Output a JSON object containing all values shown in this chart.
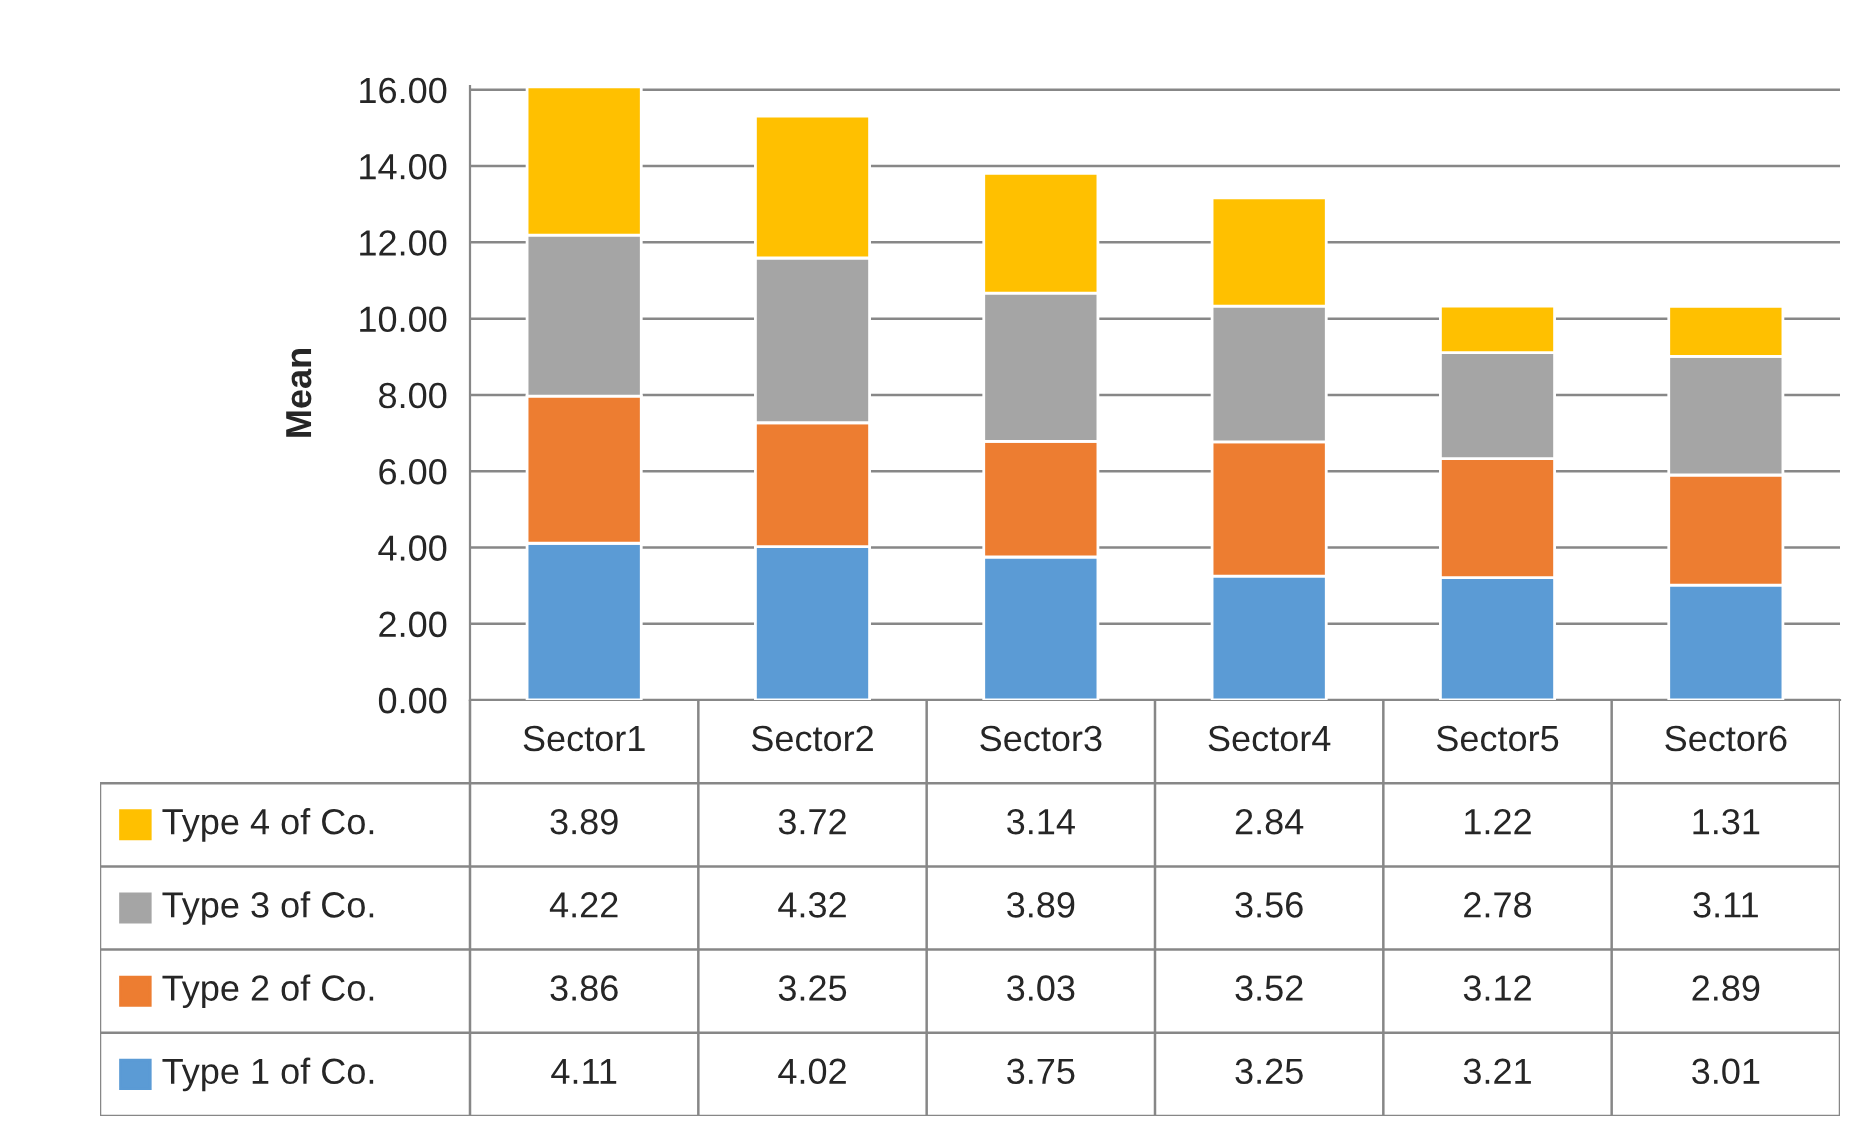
{
  "chart_data": {
    "type": "bar",
    "stacked": true,
    "ylabel": "Mean",
    "categories": [
      "Sector1",
      "Sector2",
      "Sector3",
      "Sector4",
      "Sector5",
      "Sector6"
    ],
    "series": [
      {
        "name": "Type 1 of Co.",
        "color": "#5b9bd5",
        "values": [
          4.11,
          4.02,
          3.75,
          3.25,
          3.21,
          3.01
        ]
      },
      {
        "name": "Type 2 of Co.",
        "color": "#ed7d31",
        "values": [
          3.86,
          3.25,
          3.03,
          3.52,
          3.12,
          2.89
        ]
      },
      {
        "name": "Type 3 of Co.",
        "color": "#a5a5a5",
        "values": [
          4.22,
          4.32,
          3.89,
          3.56,
          2.78,
          3.11
        ]
      },
      {
        "name": "Type 4 of Co.",
        "color": "#ffc000",
        "values": [
          3.89,
          3.72,
          3.14,
          2.84,
          1.22,
          1.31
        ]
      }
    ],
    "ylim": [
      0,
      16.1
    ],
    "yticks": [
      {
        "value": 0,
        "label": "0.00"
      },
      {
        "value": 2,
        "label": "2.00"
      },
      {
        "value": 4,
        "label": "4.00"
      },
      {
        "value": 6,
        "label": "6.00"
      },
      {
        "value": 8,
        "label": "8.00"
      },
      {
        "value": 10,
        "label": "10.00"
      },
      {
        "value": 12,
        "label": "12.00"
      },
      {
        "value": 14,
        "label": "14.00"
      },
      {
        "value": 16,
        "label": "16.00"
      }
    ],
    "grid": "y",
    "legend": "bottom",
    "data_labels": true
  }
}
